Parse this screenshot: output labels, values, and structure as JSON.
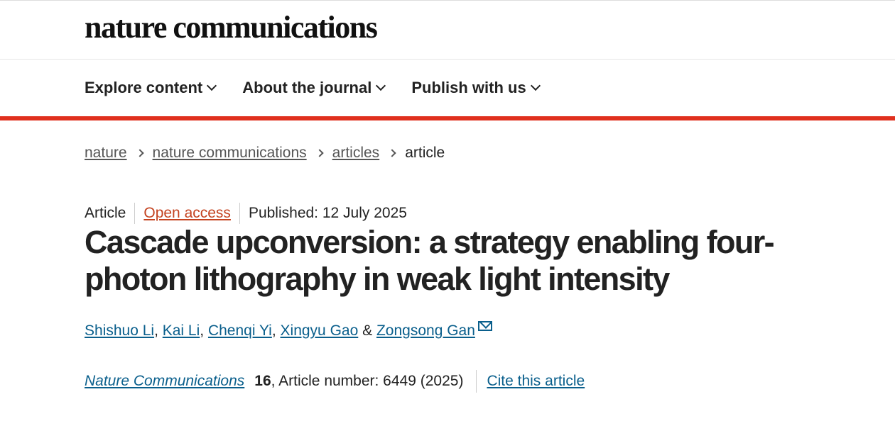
{
  "header": {
    "logo": "nature communications"
  },
  "nav": {
    "items": [
      {
        "label": "Explore content"
      },
      {
        "label": "About the journal"
      },
      {
        "label": "Publish with us"
      }
    ]
  },
  "breadcrumb": [
    "nature",
    "nature communications",
    "articles",
    "article"
  ],
  "meta": {
    "type": "Article",
    "access": "Open access",
    "published": "Published: 12 July 2025"
  },
  "title": "Cascade upconversion: a strategy enabling four-photon lithography in weak light intensity",
  "authors": [
    "Shishuo Li",
    "Kai Li",
    "Chenqi Yi",
    "Xingyu Gao",
    "Zongsong Gan"
  ],
  "author_sep": {
    "comma": ", ",
    "amp": " & "
  },
  "citation": {
    "journal": "Nature Communications",
    "volume": "16",
    "rest": ", Article number: 6449 (2025)",
    "cite_label": "Cite this article"
  },
  "colors": {
    "accent": "#e0301e",
    "link": "#0a5f8c",
    "open_access": "#c4421f"
  }
}
